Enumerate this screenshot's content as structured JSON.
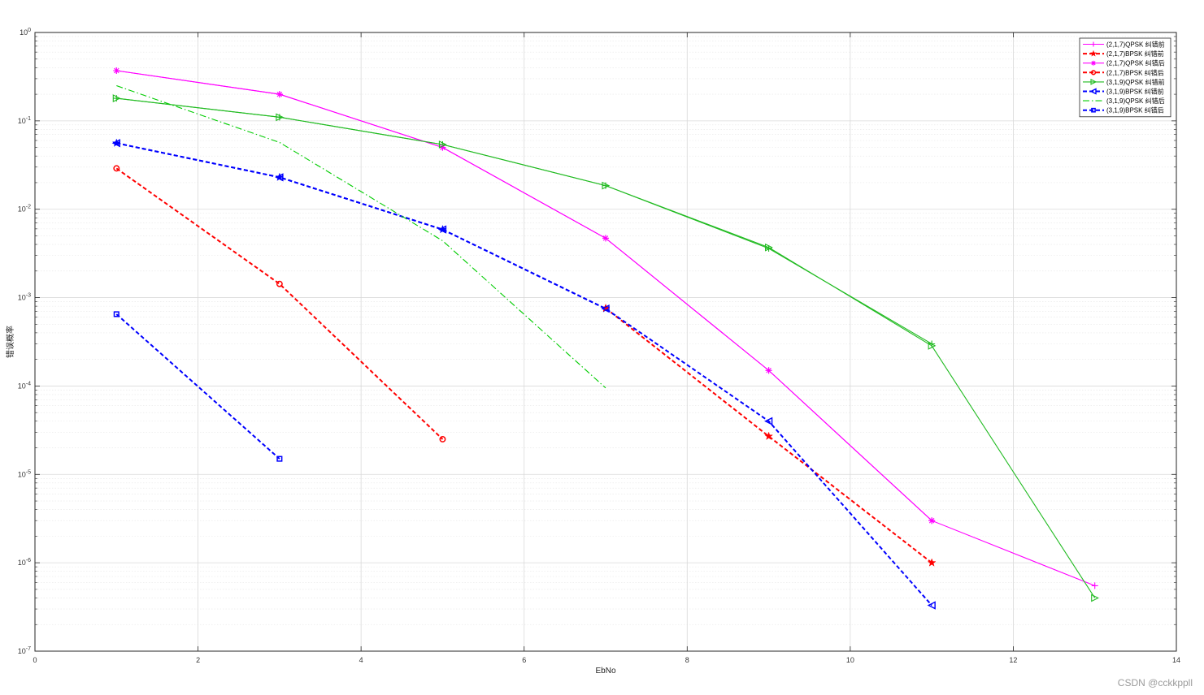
{
  "chart_data": {
    "type": "line",
    "title": "",
    "xlabel": "EbNo",
    "ylabel": "错误概率",
    "xlim": [
      0,
      14
    ],
    "ylim": [
      1e-07,
      1
    ],
    "yscale": "log",
    "grid": true,
    "legend_position": "top-right",
    "xticks": [
      0,
      2,
      4,
      6,
      8,
      10,
      12,
      14
    ],
    "yticks": [
      {
        "base": "10",
        "exp": "0"
      },
      {
        "base": "10",
        "exp": "-1"
      },
      {
        "base": "10",
        "exp": "-2"
      },
      {
        "base": "10",
        "exp": "-3"
      },
      {
        "base": "10",
        "exp": "-4"
      },
      {
        "base": "10",
        "exp": "-5"
      },
      {
        "base": "10",
        "exp": "-6"
      },
      {
        "base": "10",
        "exp": "-7"
      }
    ],
    "series": [
      {
        "name": "(2,1,7)QPSK 纠错前",
        "color": "#ff00ff",
        "style": "solid",
        "marker": "plus",
        "x": [
          1,
          3,
          5,
          7,
          9,
          11,
          13
        ],
        "y": [
          0.37,
          0.2,
          0.05,
          0.0047,
          0.00015,
          3e-06,
          5.5e-07
        ]
      },
      {
        "name": "(2,1,7)BPSK 纠错前",
        "color": "#ff0000",
        "style": "dashed",
        "marker": "star",
        "x": [
          7,
          9,
          11
        ],
        "y": [
          0.00076,
          2.7e-05,
          1e-06
        ]
      },
      {
        "name": "(2,1,7)QPSK 纠错后",
        "color": "#ff00ff",
        "style": "solid",
        "marker": "asterisk",
        "x": [
          1,
          3,
          5,
          7,
          9,
          11
        ],
        "y": [
          0.37,
          0.2,
          0.05,
          0.0047,
          0.00015,
          3e-06
        ]
      },
      {
        "name": "(2,1,7)BPSK 纠错后",
        "color": "#ff0000",
        "style": "dashed",
        "marker": "circle",
        "x": [
          1,
          3,
          5
        ],
        "y": [
          0.029,
          0.00143,
          2.5e-05
        ]
      },
      {
        "name": "(3,1,9)QPSK 纠错前",
        "color": "#22bb22",
        "style": "solid",
        "marker": "triangle-right",
        "x": [
          1,
          3,
          5,
          7,
          9,
          11,
          13
        ],
        "y": [
          0.18,
          0.11,
          0.054,
          0.0185,
          0.0037,
          0.000285,
          4e-07
        ]
      },
      {
        "name": "(3,1,9)BPSK 纠错前",
        "color": "#0000ff",
        "style": "dashed",
        "marker": "triangle-left",
        "x": [
          1,
          3,
          5,
          7,
          9,
          11
        ],
        "y": [
          0.056,
          0.023,
          0.0059,
          0.00075,
          4e-05,
          3.3e-07
        ]
      },
      {
        "name": "(3,1,9)QPSK 纠错后",
        "color": "#00cc00",
        "style": "dashdot",
        "marker": "none",
        "x": [
          1,
          3,
          5,
          7
        ],
        "y": [
          0.25,
          0.057,
          0.0044,
          9.5e-05
        ]
      },
      {
        "name": "(3,1,9)BPSK 纠错后",
        "color": "#0000ff",
        "style": "dashed",
        "marker": "square",
        "x": [
          1,
          3
        ],
        "y": [
          0.00065,
          1.5e-05
        ]
      }
    ],
    "overlay_series": [
      {
        "color": "#22bb22",
        "style": "solid",
        "marker": "plus",
        "x": [
          1,
          3,
          5,
          7,
          9,
          11
        ],
        "y": [
          0.18,
          0.11,
          0.054,
          0.0185,
          0.0036,
          0.0003
        ]
      },
      {
        "color": "#0000ff",
        "style": "dashed",
        "marker": "star",
        "x": [
          1,
          3,
          5,
          7
        ],
        "y": [
          0.056,
          0.023,
          0.0059,
          0.00075
        ]
      }
    ]
  },
  "watermark": "CSDN @cckkppll"
}
